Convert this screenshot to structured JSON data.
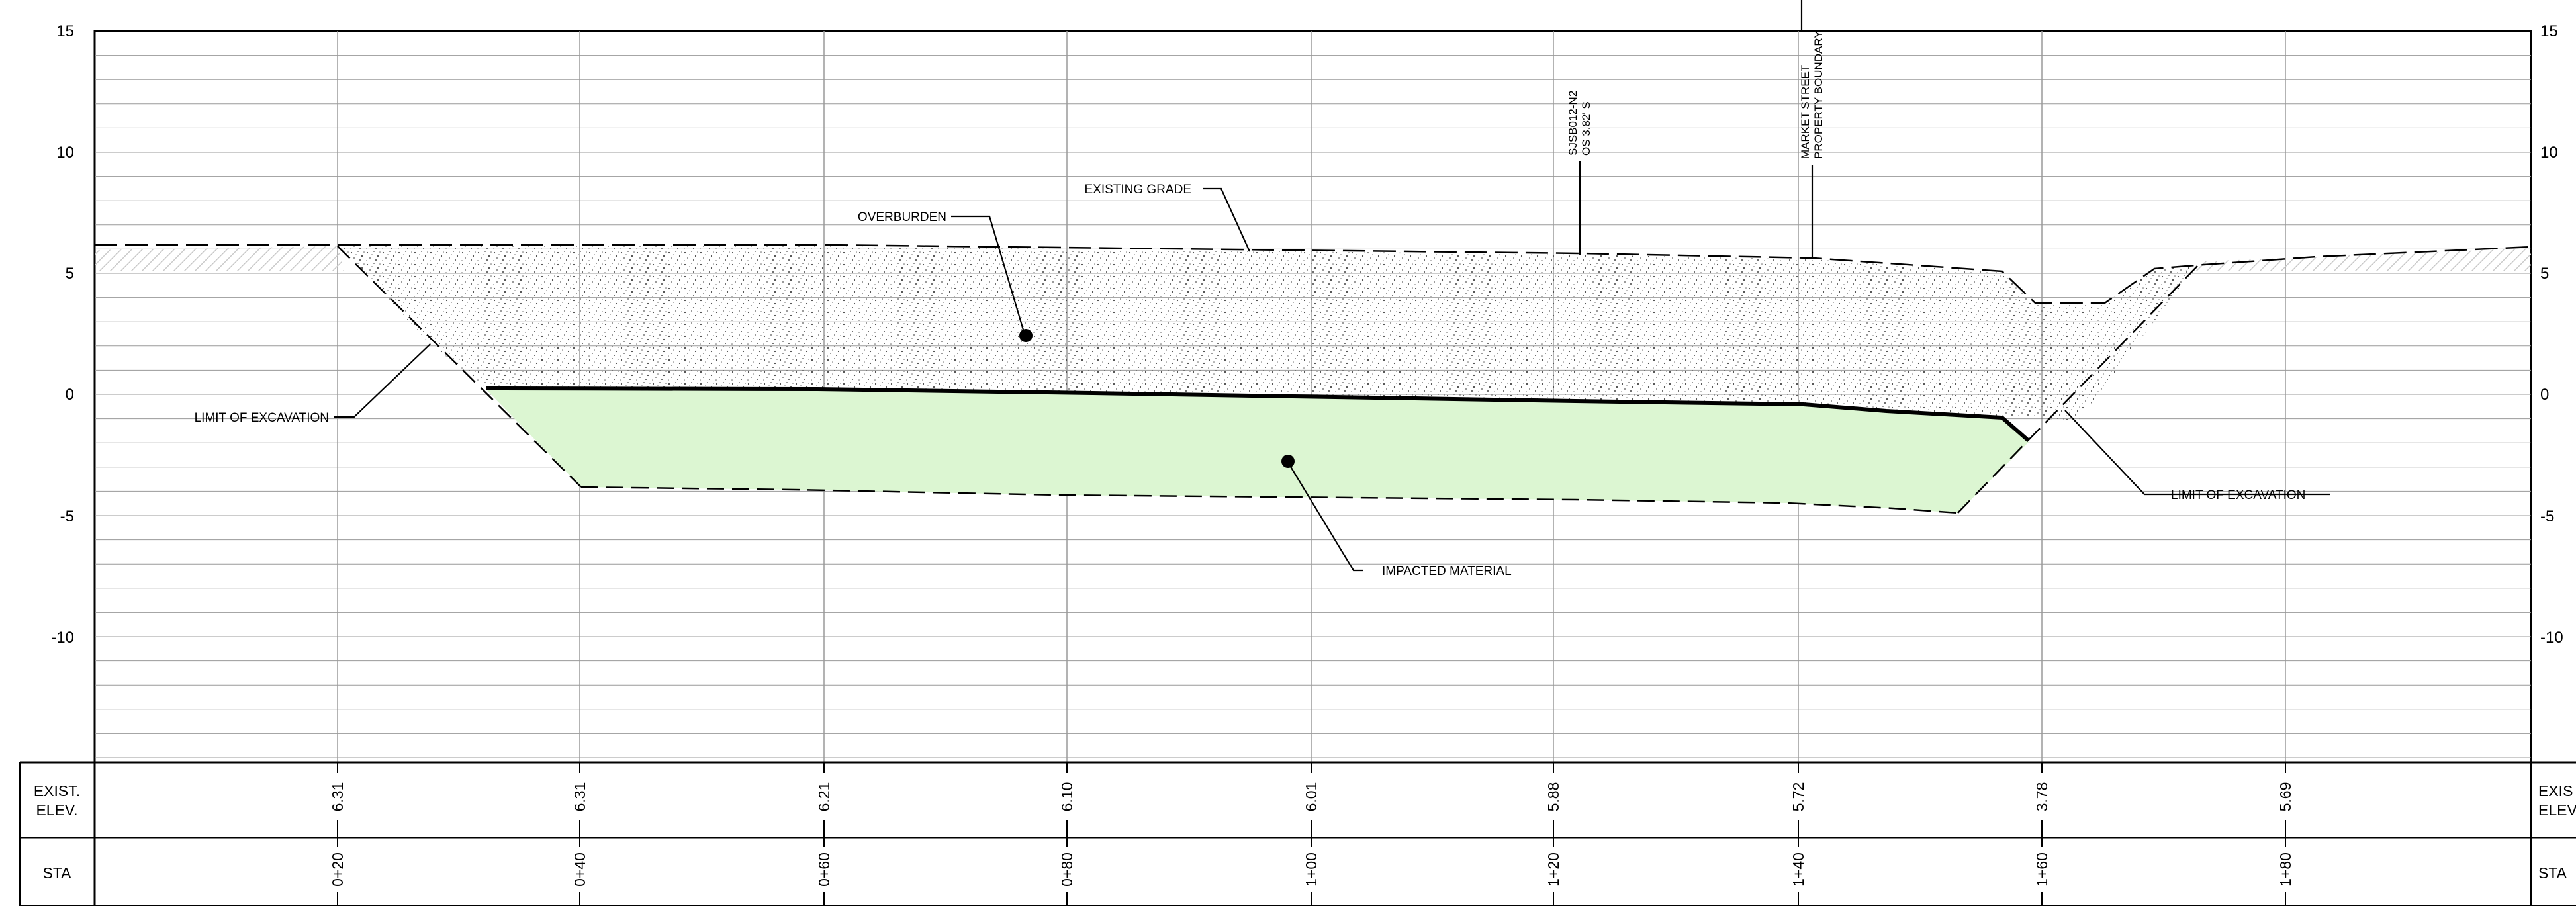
{
  "elevation_ticks": [
    "15",
    "10",
    "5",
    "0",
    "-5",
    "-10"
  ],
  "annotations": {
    "existing_grade": "EXISTING GRADE",
    "overburden": "OVERBURDEN",
    "limit_left": "LIMIT OF EXCAVATION",
    "limit_right": "LIMIT OF EXCAVATION",
    "impacted": "IMPACTED MATERIAL",
    "boring_id": "SJSB012-N2",
    "boring_offset": "OS 3.82' S",
    "market_line1": "MARKET STREET",
    "market_line2": "PROPERTY BOUNDARY"
  },
  "table": {
    "row1_label_line1": "EXIST.",
    "row1_label_line2": "ELEV.",
    "row1_label_right_line1": "EXIS",
    "row1_label_right_line2": "ELEV",
    "row2_label": "STA",
    "row2_label_right": "STA",
    "stations": [
      "0+20",
      "0+40",
      "0+60",
      "0+80",
      "1+00",
      "1+20",
      "1+40",
      "1+60",
      "1+80"
    ],
    "existing_elevations": [
      "6.31",
      "6.31",
      "6.21",
      "6.10",
      "6.01",
      "5.88",
      "5.72",
      "3.78",
      "5.69"
    ]
  },
  "colors": {
    "impacted_fill": "#dcf6d2",
    "grid": "#9a9a9a",
    "line": "#000000"
  }
}
